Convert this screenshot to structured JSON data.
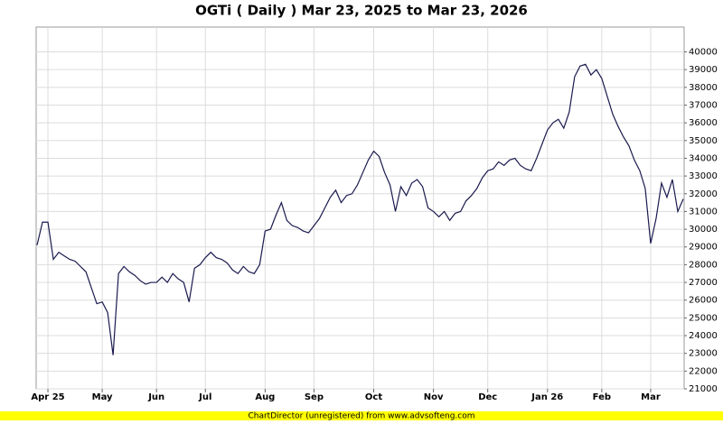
{
  "chart_data": {
    "type": "line",
    "title": "OGTi ( Daily ) Mar 23, 2025 to Mar 23, 2026",
    "footer": "ChartDirector (unregistered) from www.advsofteng.com",
    "categories": [
      null,
      null,
      "Apr 25",
      null,
      null,
      null,
      null,
      null,
      null,
      null,
      null,
      null,
      "May",
      null,
      null,
      null,
      null,
      null,
      null,
      null,
      null,
      null,
      "Jun",
      null,
      null,
      null,
      null,
      null,
      null,
      null,
      null,
      "Jul",
      null,
      null,
      null,
      null,
      null,
      null,
      null,
      null,
      null,
      null,
      "Aug",
      null,
      null,
      null,
      null,
      null,
      null,
      null,
      null,
      "Sep",
      null,
      null,
      null,
      null,
      null,
      null,
      null,
      null,
      null,
      null,
      "Oct",
      null,
      null,
      null,
      null,
      null,
      null,
      null,
      null,
      null,
      null,
      "Nov",
      null,
      null,
      null,
      null,
      null,
      null,
      null,
      null,
      null,
      "Dec",
      null,
      null,
      null,
      null,
      null,
      null,
      null,
      null,
      null,
      null,
      "Jan 26",
      null,
      null,
      null,
      null,
      null,
      null,
      null,
      null,
      null,
      "Feb",
      null,
      null,
      null,
      null,
      null,
      null,
      null,
      null,
      "Mar",
      null,
      null,
      null,
      null,
      null,
      null
    ],
    "values": [
      29100,
      30400,
      30400,
      28300,
      28700,
      28500,
      28300,
      28200,
      27900,
      27600,
      26700,
      25800,
      25900,
      25300,
      22900,
      27500,
      27900,
      27600,
      27400,
      27100,
      26900,
      27000,
      27000,
      27300,
      27000,
      27500,
      27200,
      27000,
      25900,
      27800,
      28000,
      28400,
      28700,
      28400,
      28300,
      28100,
      27700,
      27500,
      27900,
      27600,
      27500,
      28000,
      29900,
      30000,
      30800,
      31500,
      30500,
      30200,
      30100,
      29900,
      29800,
      30200,
      30600,
      31200,
      31800,
      32200,
      31500,
      31900,
      32000,
      32500,
      33200,
      33900,
      34400,
      34100,
      33200,
      32500,
      31000,
      32400,
      31900,
      32600,
      32800,
      32400,
      31200,
      31000,
      30700,
      31000,
      30500,
      30900,
      31000,
      31600,
      31900,
      32300,
      32900,
      33300,
      33400,
      33800,
      33600,
      33900,
      34000,
      33600,
      33400,
      33300,
      34000,
      34800,
      35600,
      36000,
      36200,
      35700,
      36600,
      38600,
      39200,
      39300,
      38700,
      39000,
      38500,
      37500,
      36500,
      35800,
      35200,
      34700,
      33900,
      33300,
      32300,
      29200,
      30600,
      32600,
      31800,
      32800,
      31000,
      31700
    ],
    "color": "#1a1a4e",
    "ylim": [
      21000,
      41400
    ],
    "yticks": [
      21000,
      22000,
      23000,
      24000,
      25000,
      26000,
      27000,
      28000,
      29000,
      30000,
      31000,
      32000,
      33000,
      34000,
      35000,
      36000,
      37000,
      38000,
      39000,
      40000
    ],
    "grid": true
  }
}
